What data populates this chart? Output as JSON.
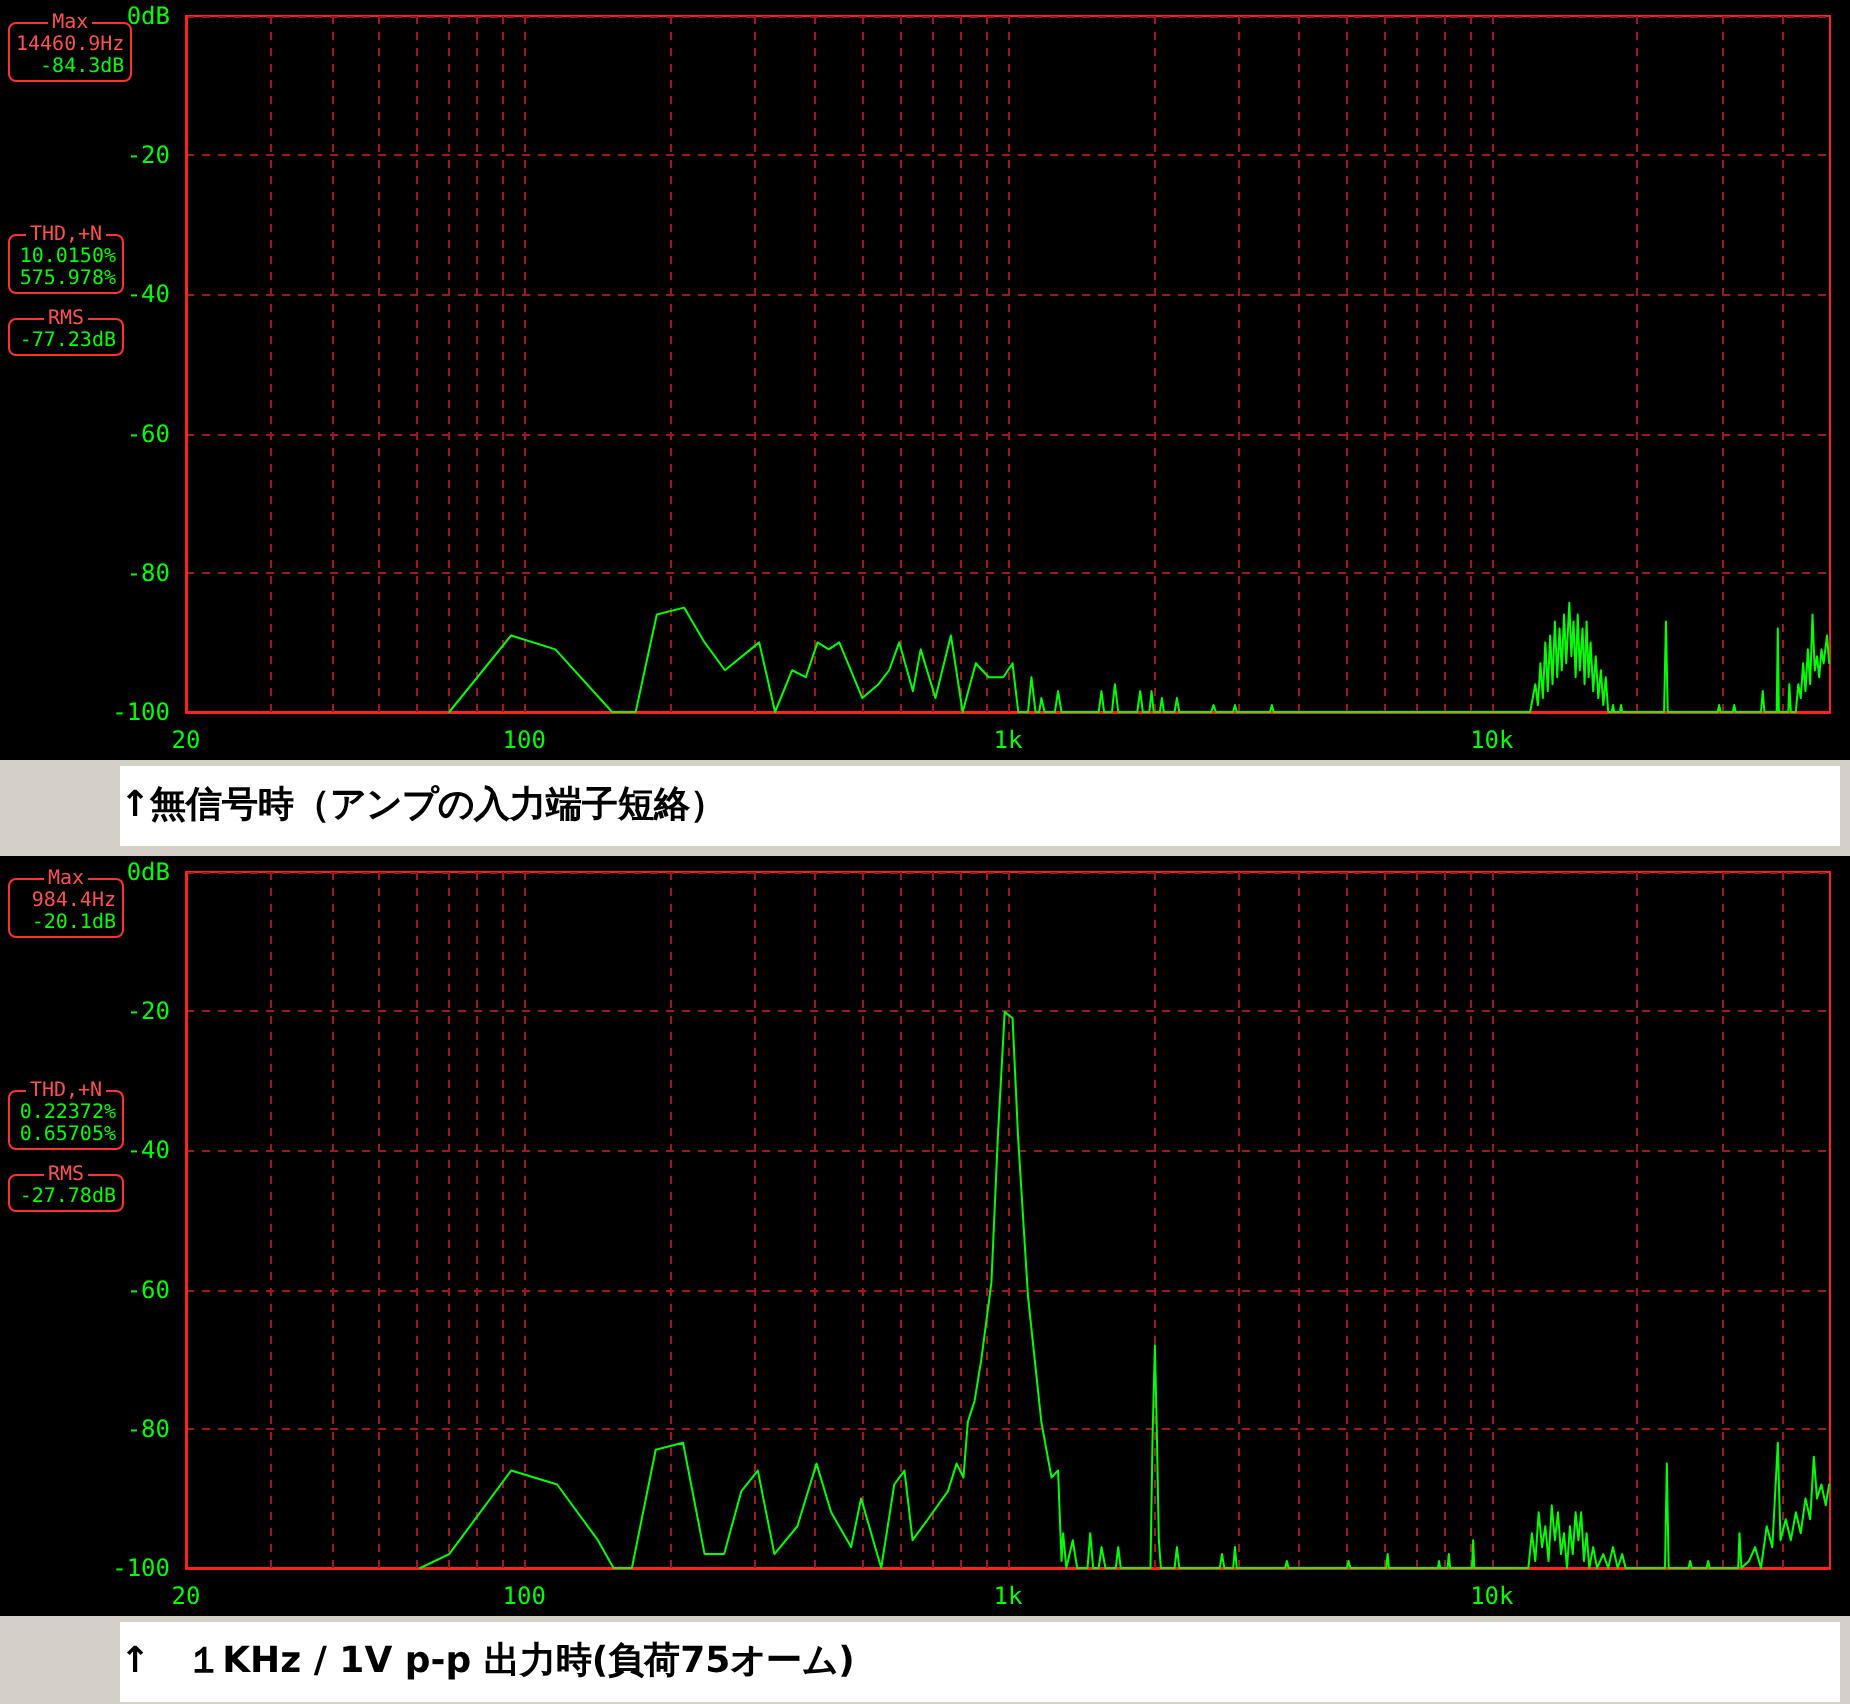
{
  "chart_data": [
    {
      "type": "line",
      "title": "↑無信号時（アンプの入力端子短絡）",
      "annotations": [
        "Max",
        "14460.9Hz",
        "-84.3dB",
        "THD,+N",
        "10.0150%",
        "575.978%",
        "RMS",
        "-77.23dB"
      ],
      "log": "x",
      "grid": true,
      "marker": "none",
      "line_style": "solid",
      "xlim": [
        20,
        50000
      ],
      "ylim": [
        -100,
        0
      ],
      "xticks": [
        {
          "value": 20,
          "label": "20"
        },
        {
          "value": 30,
          "label": null
        },
        {
          "value": 40,
          "label": null
        },
        {
          "value": 50,
          "label": null
        },
        {
          "value": 60,
          "label": null
        },
        {
          "value": 70,
          "label": null
        },
        {
          "value": 80,
          "label": null
        },
        {
          "value": 90,
          "label": null
        },
        {
          "value": 100,
          "label": "100"
        },
        {
          "value": 200,
          "label": null
        },
        {
          "value": 300,
          "label": null
        },
        {
          "value": 400,
          "label": null
        },
        {
          "value": 500,
          "label": null
        },
        {
          "value": 600,
          "label": null
        },
        {
          "value": 700,
          "label": null
        },
        {
          "value": 800,
          "label": null
        },
        {
          "value": 900,
          "label": null
        },
        {
          "value": 1000,
          "label": "1k"
        },
        {
          "value": 2000,
          "label": null
        },
        {
          "value": 3000,
          "label": null
        },
        {
          "value": 4000,
          "label": null
        },
        {
          "value": 5000,
          "label": null
        },
        {
          "value": 6000,
          "label": null
        },
        {
          "value": 7000,
          "label": null
        },
        {
          "value": 8000,
          "label": null
        },
        {
          "value": 9000,
          "label": null
        },
        {
          "value": 10000,
          "label": "10k"
        },
        {
          "value": 20000,
          "label": null
        },
        {
          "value": 30000,
          "label": null
        },
        {
          "value": 40000,
          "label": null
        }
      ],
      "yticks": [
        {
          "value": 0,
          "label": "0dB"
        },
        -20,
        -40,
        -60,
        -80,
        -100
      ],
      "series": [
        {
          "color": "#00ff00",
          "x": [
            70,
            94,
            116,
            152,
            170,
            188,
            214,
            236,
            260,
            306,
            330,
            358,
            382,
            404,
            426,
            448,
            500,
            540,
            568,
            596,
            636,
            660,
            708,
            762,
            806,
            858,
            912,
            978,
            1022,
            1050,
            1100,
            1118,
            1140,
            1160,
            1172,
            1190,
            1250,
            1269,
            1290,
            1540,
            1560,
            1580,
            1640,
            1663,
            1690,
            1850,
            1876,
            1900,
            1960,
            1980,
            2000,
            2060,
            2080,
            2100,
            2210,
            2234,
            2260,
            2630,
            2660,
            2690,
            2920,
            2945,
            2970,
            3480,
            3510,
            3540,
            12000,
            12300,
            12450,
            12600,
            12750,
            12900,
            13050,
            13200,
            13350,
            13500,
            13650,
            13800,
            13950,
            14100,
            14250,
            14460.9,
            14600,
            14750,
            14900,
            15050,
            15200,
            15400,
            15550,
            15700,
            15850,
            16000,
            16200,
            16400,
            16600,
            16800,
            17000,
            17200,
            17400,
            17700,
            17800,
            17900,
            18400,
            18500,
            18600,
            22700,
            22900,
            23100,
            29300,
            29500,
            29700,
            31500,
            31700,
            31900,
            36000,
            36300,
            36600,
            38800,
            39000,
            39200,
            41000,
            41200,
            41500,
            42500,
            43000,
            43500,
            44000,
            44500,
            45000,
            45500,
            46000,
            46500,
            47000,
            47500,
            48000,
            48500,
            49300,
            49800
          ],
          "values": [
            -100,
            -89,
            -91,
            -100,
            -100,
            -86,
            -85,
            -90,
            -94,
            -90,
            -100,
            -94,
            -95,
            -90,
            -91,
            -90,
            -98,
            -96,
            -94,
            -90,
            -97,
            -91,
            -98,
            -89,
            -100,
            -93,
            -95,
            -95,
            -93,
            -100,
            -100,
            -95,
            -100,
            -100,
            -98,
            -100,
            -100,
            -97,
            -100,
            -100,
            -97,
            -100,
            -100,
            -96,
            -100,
            -100,
            -97,
            -100,
            -100,
            -97,
            -100,
            -100,
            -98,
            -100,
            -100,
            -98,
            -100,
            -100,
            -99,
            -100,
            -100,
            -99,
            -100,
            -100,
            -99,
            -100,
            -100,
            -96,
            -99,
            -93,
            -98,
            -90,
            -97,
            -89,
            -96,
            -87,
            -95,
            -88,
            -94,
            -86,
            -93,
            -84.3,
            -92,
            -87,
            -95,
            -86,
            -94,
            -88,
            -96,
            -87,
            -95,
            -90,
            -97,
            -92,
            -98,
            -94,
            -99,
            -95,
            -100,
            -100,
            -99,
            -100,
            -100,
            -99,
            -100,
            -100,
            -87,
            -100,
            -100,
            -99,
            -100,
            -100,
            -99,
            -100,
            -100,
            -97,
            -100,
            -100,
            -88,
            -100,
            -100,
            -96,
            -100,
            -100,
            -96,
            -98,
            -93,
            -97,
            -91,
            -96,
            -86,
            -94,
            -92,
            -95,
            -91,
            -93,
            -89,
            -93
          ]
        }
      ]
    },
    {
      "type": "line",
      "title": "↑　１KHz / 1V p-p 出力時(負荷75オーム)",
      "annotations": [
        "Max",
        "984.4Hz",
        "-20.1dB",
        "THD,+N",
        "0.22372%",
        "0.65705%",
        "RMS",
        "-27.78dB"
      ],
      "log": "x",
      "grid": true,
      "marker": "none",
      "line_style": "solid",
      "xlim": [
        20,
        50000
      ],
      "ylim": [
        -100,
        0
      ],
      "xticks": [
        {
          "value": 20,
          "label": "20"
        },
        {
          "value": 30,
          "label": null
        },
        {
          "value": 40,
          "label": null
        },
        {
          "value": 50,
          "label": null
        },
        {
          "value": 60,
          "label": null
        },
        {
          "value": 70,
          "label": null
        },
        {
          "value": 80,
          "label": null
        },
        {
          "value": 90,
          "label": null
        },
        {
          "value": 100,
          "label": "100"
        },
        {
          "value": 200,
          "label": null
        },
        {
          "value": 300,
          "label": null
        },
        {
          "value": 400,
          "label": null
        },
        {
          "value": 500,
          "label": null
        },
        {
          "value": 600,
          "label": null
        },
        {
          "value": 700,
          "label": null
        },
        {
          "value": 800,
          "label": null
        },
        {
          "value": 900,
          "label": null
        },
        {
          "value": 1000,
          "label": "1k"
        },
        {
          "value": 2000,
          "label": null
        },
        {
          "value": 3000,
          "label": null
        },
        {
          "value": 4000,
          "label": null
        },
        {
          "value": 5000,
          "label": null
        },
        {
          "value": 6000,
          "label": null
        },
        {
          "value": 7000,
          "label": null
        },
        {
          "value": 8000,
          "label": null
        },
        {
          "value": 9000,
          "label": null
        },
        {
          "value": 10000,
          "label": "10k"
        },
        {
          "value": 20000,
          "label": null
        },
        {
          "value": 30000,
          "label": null
        },
        {
          "value": 40000,
          "label": null
        }
      ],
      "yticks": [
        {
          "value": 0,
          "label": "0dB"
        },
        -20,
        -40,
        -60,
        -80,
        -100
      ],
      "series": [
        {
          "color": "#00ff00",
          "x": [
            61,
            70,
            94,
            117,
            142,
            153,
            167,
            187,
            213,
            236,
            259,
            281,
            304,
            329,
            367,
            402,
            431,
            474,
            497,
            547,
            582,
            611,
            635,
            683,
            751,
            783,
            809,
            826,
            853,
            881,
            924,
            953,
            984.4,
            1022,
            1049,
            1100,
            1172,
            1230,
            1269,
            1290,
            1300,
            1320,
            1361,
            1390,
            1460,
            1479,
            1500,
            1540,
            1561,
            1590,
            1670,
            1690,
            1710,
            1970,
            1990,
            2012,
            2030,
            2050,
            2070,
            2210,
            2234,
            2260,
            2740,
            2769,
            2800,
            2920,
            2945,
            2970,
            3740,
            3770,
            3800,
            5020,
            5060,
            5100,
            6050,
            6090,
            6130,
            7740,
            7780,
            7820,
            8100,
            8150,
            8200,
            9100,
            9150,
            9200,
            11900,
            12100,
            12300,
            12500,
            12700,
            12900,
            13100,
            13300,
            13500,
            13700,
            13900,
            14100,
            14300,
            14500,
            14700,
            14900,
            15100,
            15300,
            15500,
            15700,
            15900,
            16200,
            16500,
            17000,
            17400,
            17800,
            18200,
            18600,
            18900,
            22800,
            23000,
            23200,
            25500,
            25700,
            25900,
            27800,
            28000,
            28200,
            32300,
            32500,
            32800,
            34000,
            35000,
            36000,
            37000,
            38000,
            39000,
            39500,
            40500,
            41500,
            42500,
            43500,
            44500,
            45500,
            46300,
            47000,
            48000,
            49000,
            49800
          ],
          "values": [
            -100,
            -98,
            -86,
            -88,
            -96,
            -100,
            -100,
            -83,
            -82,
            -98,
            -98,
            -89,
            -86,
            -98,
            -94,
            -85,
            -92,
            -97,
            -90,
            -100,
            -88,
            -86,
            -96,
            -93,
            -89,
            -85,
            -87,
            -79,
            -76,
            -70,
            -59,
            -38,
            -20.1,
            -21,
            -38,
            -61,
            -79,
            -87,
            -86,
            -99,
            -95,
            -100,
            -96,
            -100,
            -100,
            -95,
            -100,
            -100,
            -97,
            -100,
            -100,
            -97,
            -100,
            -100,
            -81,
            -68,
            -80,
            -96,
            -100,
            -100,
            -97,
            -100,
            -100,
            -98,
            -100,
            -100,
            -97,
            -100,
            -100,
            -99,
            -100,
            -100,
            -99,
            -100,
            -100,
            -98,
            -100,
            -100,
            -99,
            -100,
            -100,
            -98,
            -100,
            -100,
            -96,
            -100,
            -100,
            -95,
            -99,
            -92,
            -97,
            -94,
            -99,
            -91,
            -96,
            -92,
            -98,
            -95,
            -100,
            -94,
            -98,
            -92,
            -96,
            -92,
            -99,
            -95,
            -100,
            -97,
            -100,
            -98,
            -100,
            -97,
            -100,
            -98,
            -100,
            -100,
            -85,
            -100,
            -100,
            -99,
            -100,
            -100,
            -99,
            -100,
            -100,
            -95,
            -100,
            -99,
            -97,
            -100,
            -94,
            -97,
            -82,
            -96,
            -93,
            -96,
            -92,
            -95,
            -90,
            -93,
            -84,
            -90,
            -88,
            -91,
            -88
          ]
        }
      ]
    }
  ]
}
